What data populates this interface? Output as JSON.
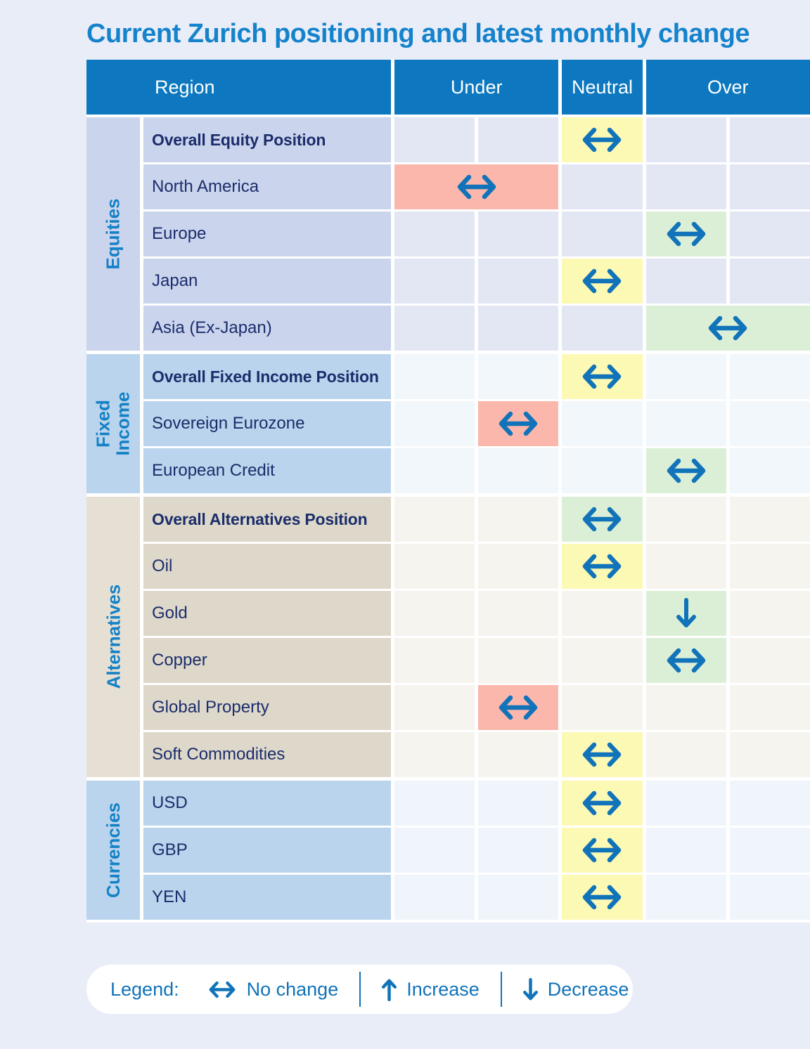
{
  "title": "Current Zurich positioning and latest monthly change",
  "header": {
    "region": "Region",
    "under": "Under",
    "neutral": "Neutral",
    "over": "Over"
  },
  "colors": {
    "page_bg": "#e9edf8",
    "header_bg": "#0d78bf",
    "title_blue": "#1583cb",
    "arrow_blue": "#1173b9",
    "category_blue": "#1581c6",
    "label_navy": "#1b2d6b",
    "highlight_yellow": "#fcf9b4",
    "highlight_green": "#dbefd6",
    "highlight_red": "#fbb7ab"
  },
  "sections": [
    {
      "name": "Equities",
      "theme": "equities",
      "rows": [
        {
          "label": "Overall Equity Position",
          "bold": true,
          "marker": {
            "col": "neutral",
            "span": 1,
            "highlight": "yellow",
            "symbol": "no-change"
          }
        },
        {
          "label": "North America",
          "bold": false,
          "marker": {
            "col": "under-1",
            "span": 2,
            "highlight": "red",
            "symbol": "no-change"
          }
        },
        {
          "label": "Europe",
          "bold": false,
          "marker": {
            "col": "over-1",
            "span": 1,
            "highlight": "green",
            "symbol": "no-change"
          }
        },
        {
          "label": "Japan",
          "bold": false,
          "marker": {
            "col": "neutral",
            "span": 1,
            "highlight": "yellow",
            "symbol": "no-change"
          }
        },
        {
          "label": "Asia (Ex-Japan)",
          "bold": false,
          "marker": {
            "col": "over-1",
            "span": 2,
            "highlight": "green",
            "symbol": "no-change"
          }
        }
      ]
    },
    {
      "name": "Fixed\nIncome",
      "theme": "fixed-income",
      "rows": [
        {
          "label": "Overall Fixed Income Position",
          "bold": true,
          "marker": {
            "col": "neutral",
            "span": 1,
            "highlight": "yellow",
            "symbol": "no-change"
          }
        },
        {
          "label": "Sovereign Eurozone",
          "bold": false,
          "marker": {
            "col": "under-2",
            "span": 1,
            "highlight": "red",
            "symbol": "no-change"
          }
        },
        {
          "label": "European Credit",
          "bold": false,
          "marker": {
            "col": "over-1",
            "span": 1,
            "highlight": "green",
            "symbol": "no-change"
          }
        }
      ]
    },
    {
      "name": "Alternatives",
      "theme": "alternatives",
      "rows": [
        {
          "label": "Overall Alternatives Position",
          "bold": true,
          "marker": {
            "col": "neutral",
            "span": 1,
            "highlight": "green",
            "symbol": "no-change"
          }
        },
        {
          "label": "Oil",
          "bold": false,
          "marker": {
            "col": "neutral",
            "span": 1,
            "highlight": "yellow",
            "symbol": "no-change"
          }
        },
        {
          "label": "Gold",
          "bold": false,
          "marker": {
            "col": "over-1",
            "span": 1,
            "highlight": "green",
            "symbol": "decrease"
          }
        },
        {
          "label": "Copper",
          "bold": false,
          "marker": {
            "col": "over-1",
            "span": 1,
            "highlight": "green",
            "symbol": "no-change"
          }
        },
        {
          "label": "Global Property",
          "bold": false,
          "marker": {
            "col": "under-2",
            "span": 1,
            "highlight": "red",
            "symbol": "no-change"
          }
        },
        {
          "label": "Soft Commodities",
          "bold": false,
          "marker": {
            "col": "neutral",
            "span": 1,
            "highlight": "yellow",
            "symbol": "no-change"
          }
        }
      ]
    },
    {
      "name": "Currencies",
      "theme": "currencies",
      "rows": [
        {
          "label": "USD",
          "bold": false,
          "marker": {
            "col": "neutral",
            "span": 1,
            "highlight": "yellow",
            "symbol": "no-change"
          }
        },
        {
          "label": "GBP",
          "bold": false,
          "marker": {
            "col": "neutral",
            "span": 1,
            "highlight": "yellow",
            "symbol": "no-change"
          }
        },
        {
          "label": "YEN",
          "bold": false,
          "marker": {
            "col": "neutral",
            "span": 1,
            "highlight": "yellow",
            "symbol": "no-change"
          }
        }
      ]
    }
  ],
  "legend": {
    "label": "Legend:",
    "items": [
      {
        "symbol": "no-change",
        "text": "No change"
      },
      {
        "symbol": "increase",
        "text": "Increase"
      },
      {
        "symbol": "decrease",
        "text": "Decrease"
      }
    ]
  },
  "chart_data": {
    "type": "table",
    "title": "Current Zurich positioning and latest monthly change",
    "columns": [
      "Region",
      "Under",
      "Neutral",
      "Over"
    ],
    "position_scale_note": "under-1 and under-2 are sub-columns of Under; over-1 and over-2 are sub-columns of Over; spans of 2 cover both sub-columns",
    "rows": [
      {
        "category": "Equities",
        "region": "Overall Equity Position",
        "position": "neutral",
        "change": "no change"
      },
      {
        "category": "Equities",
        "region": "North America",
        "position": "under (full span)",
        "change": "no change"
      },
      {
        "category": "Equities",
        "region": "Europe",
        "position": "over-1",
        "change": "no change"
      },
      {
        "category": "Equities",
        "region": "Japan",
        "position": "neutral",
        "change": "no change"
      },
      {
        "category": "Equities",
        "region": "Asia (Ex-Japan)",
        "position": "over (full span)",
        "change": "no change"
      },
      {
        "category": "Fixed Income",
        "region": "Overall Fixed Income Position",
        "position": "neutral",
        "change": "no change"
      },
      {
        "category": "Fixed Income",
        "region": "Sovereign Eurozone",
        "position": "under-2",
        "change": "no change"
      },
      {
        "category": "Fixed Income",
        "region": "European Credit",
        "position": "over-1",
        "change": "no change"
      },
      {
        "category": "Alternatives",
        "region": "Overall Alternatives Position",
        "position": "neutral",
        "change": "no change"
      },
      {
        "category": "Alternatives",
        "region": "Oil",
        "position": "neutral",
        "change": "no change"
      },
      {
        "category": "Alternatives",
        "region": "Gold",
        "position": "over-1",
        "change": "decrease"
      },
      {
        "category": "Alternatives",
        "region": "Copper",
        "position": "over-1",
        "change": "no change"
      },
      {
        "category": "Alternatives",
        "region": "Global Property",
        "position": "under-2",
        "change": "no change"
      },
      {
        "category": "Alternatives",
        "region": "Soft Commodities",
        "position": "neutral",
        "change": "no change"
      },
      {
        "category": "Currencies",
        "region": "USD",
        "position": "neutral",
        "change": "no change"
      },
      {
        "category": "Currencies",
        "region": "GBP",
        "position": "neutral",
        "change": "no change"
      },
      {
        "category": "Currencies",
        "region": "YEN",
        "position": "neutral",
        "change": "no change"
      }
    ]
  }
}
